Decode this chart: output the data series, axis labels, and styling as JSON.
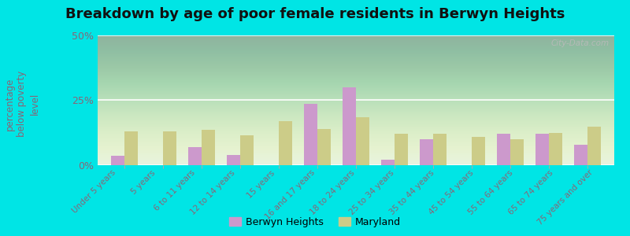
{
  "title": "Breakdown by age of poor female residents in Berwyn Heights",
  "ylabel_line1": "percentage",
  "ylabel_line2": "below poverty",
  "ylabel_line3": "level",
  "categories": [
    "Under 5 years",
    "5 years",
    "6 to 11 years",
    "12 to 14 years",
    "15 years",
    "16 and 17 years",
    "18 to 24 years",
    "25 to 34 years",
    "35 to 44 years",
    "45 to 54 years",
    "55 to 64 years",
    "65 to 74 years",
    "75 years and over"
  ],
  "berwyn_heights": [
    3.5,
    0,
    7.0,
    4.0,
    0,
    23.5,
    30.0,
    2.0,
    10.0,
    0,
    12.0,
    12.0,
    8.0
  ],
  "maryland": [
    13.0,
    13.0,
    13.5,
    11.5,
    17.0,
    14.0,
    18.5,
    12.0,
    12.0,
    11.0,
    10.0,
    12.5,
    15.0
  ],
  "berwyn_color": "#cc99cc",
  "maryland_color": "#cccc88",
  "ylim": [
    0,
    50
  ],
  "yticks": [
    0,
    25,
    50
  ],
  "ytick_labels": [
    "0%",
    "25%",
    "50%"
  ],
  "bar_width": 0.35,
  "title_fontsize": 13,
  "figure_bg_color": "#00e5e5",
  "legend_berwyn": "Berwyn Heights",
  "legend_maryland": "Maryland",
  "watermark": "City-Data.com",
  "grid_color": "#ffffff",
  "tick_color": "#886677",
  "label_color": "#886677"
}
